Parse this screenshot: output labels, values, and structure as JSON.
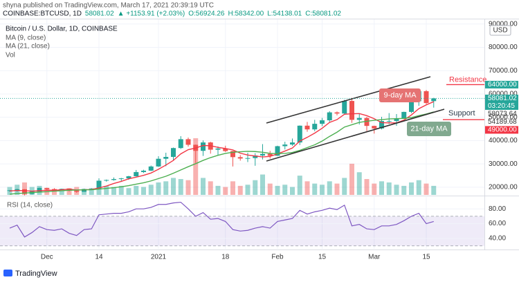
{
  "chart_data": {
    "type": "candlestick",
    "publisher": "shyna published on TradingView.com, March 17, 2021 20:39:19 UTC",
    "quote": [
      "COINBASE:BTCUSD, 1D",
      "58081.02",
      "▲ +1153.91 (+2.03%)",
      "O:56924.26",
      "H:58342.00",
      "L:54138.01",
      "C:58081.02"
    ],
    "title": "Bitcoin / U.S. Dollar, 1D, COINBASE",
    "currency": "USD",
    "categories": [
      null,
      null,
      null,
      null,
      null,
      "Dec",
      null,
      null,
      null,
      null,
      null,
      null,
      "14",
      null,
      null,
      null,
      null,
      null,
      null,
      null,
      "2021",
      null,
      null,
      null,
      null,
      null,
      null,
      null,
      null,
      "18",
      null,
      null,
      null,
      null,
      null,
      null,
      "Feb",
      null,
      null,
      null,
      null,
      null,
      "15",
      null,
      null,
      null,
      null,
      null,
      null,
      "Mar",
      null,
      null,
      null,
      null,
      null,
      null,
      "15",
      null
    ],
    "open": [
      18400,
      18700,
      19150,
      17150,
      18100,
      19700,
      19200,
      19150,
      19300,
      18550,
      18050,
      19250,
      19450,
      22800,
      23100,
      23500,
      23800,
      24700,
      26500,
      27100,
      28900,
      32200,
      33000,
      36800,
      40600,
      38200,
      35600,
      39200,
      36100,
      36600,
      35500,
      32900,
      32300,
      32500,
      33600,
      34300,
      33500,
      37600,
      38300,
      39200,
      46400,
      44800,
      47200,
      48700,
      52100,
      51600,
      57000,
      48900,
      49700,
      46300,
      45200,
      48400,
      48400,
      49500,
      52300,
      56900,
      61200,
      56924.26
    ],
    "high": [
      18800,
      19400,
      19200,
      18200,
      19800,
      19800,
      19600,
      19400,
      19400,
      18600,
      19400,
      19600,
      23800,
      23300,
      24200,
      24000,
      24900,
      27400,
      27500,
      29300,
      33300,
      34800,
      37000,
      41900,
      41300,
      38300,
      40100,
      39500,
      37500,
      37800,
      35600,
      33800,
      34800,
      34600,
      38500,
      35600,
      37800,
      39500,
      40900,
      46500,
      48000,
      48900,
      49700,
      52600,
      52500,
      57500,
      58300,
      51400,
      50200,
      46400,
      50200,
      51800,
      51400,
      52400,
      57400,
      61800,
      61700,
      58342
    ],
    "low": [
      18000,
      18000,
      16500,
      16900,
      18000,
      18700,
      18600,
      18900,
      18100,
      17600,
      18000,
      19100,
      19300,
      22400,
      22800,
      22300,
      23200,
      24600,
      26100,
      26900,
      28700,
      29000,
      31500,
      36400,
      37400,
      30400,
      33400,
      34400,
      33900,
      35100,
      28900,
      31400,
      30800,
      29200,
      31900,
      32300,
      33400,
      36200,
      37800,
      38100,
      43800,
      44000,
      46200,
      47700,
      50800,
      51300,
      47600,
      46900,
      44100,
      43000,
      44800,
      47100,
      46300,
      49300,
      51800,
      54900,
      55600,
      54138.01
    ],
    "close": [
      18700,
      19150,
      17150,
      18100,
      19700,
      19200,
      19150,
      19300,
      18550,
      18050,
      19250,
      19450,
      22800,
      23100,
      23500,
      23800,
      24700,
      26500,
      27100,
      28900,
      32200,
      33000,
      36800,
      40600,
      38200,
      35600,
      39200,
      36100,
      36600,
      35500,
      32900,
      32300,
      32500,
      33600,
      34300,
      33500,
      37600,
      38300,
      39200,
      46400,
      44800,
      47200,
      48700,
      52100,
      51600,
      57000,
      48900,
      49700,
      46300,
      45200,
      48400,
      48400,
      49500,
      52300,
      56900,
      61200,
      56100,
      58081.02
    ],
    "series": [
      {
        "name": "MA (9, close)",
        "color": "#f23645",
        "values": [
          18400,
          18600,
          18500,
          18300,
          18500,
          18700,
          18700,
          18900,
          19200,
          18800,
          18900,
          19000,
          19700,
          20500,
          21600,
          22500,
          23600,
          24300,
          25100,
          26100,
          27700,
          29500,
          31500,
          34300,
          36100,
          36800,
          37900,
          37800,
          37100,
          36600,
          36000,
          34600,
          33800,
          33400,
          33000,
          33200,
          34300,
          35500,
          36800,
          39800,
          41400,
          43200,
          45300,
          47800,
          49000,
          51300,
          51500,
          51600,
          50700,
          49400,
          47700,
          47600,
          47600,
          48800,
          51000,
          53700,
          55300,
          56700
        ]
      },
      {
        "name": "MA (21, close)",
        "color": "#4caf50",
        "values": [
          17000,
          17300,
          17500,
          17700,
          17900,
          18100,
          18300,
          18500,
          18700,
          18800,
          18900,
          18900,
          19200,
          19500,
          19800,
          20200,
          20700,
          21300,
          21900,
          22700,
          23700,
          24700,
          26000,
          27400,
          28800,
          30100,
          31500,
          32700,
          33700,
          34500,
          35000,
          35200,
          35400,
          35300,
          35000,
          34500,
          34400,
          34500,
          34900,
          35800,
          37000,
          38200,
          39800,
          41800,
          43600,
          45800,
          46800,
          47800,
          48300,
          48700,
          49000,
          49300,
          49400,
          49500,
          49900,
          50700,
          51400,
          52300
        ]
      }
    ],
    "volume": {
      "name": "Vol",
      "max": 100,
      "values": [
        14,
        18,
        22,
        14,
        16,
        12,
        10,
        8,
        12,
        14,
        10,
        10,
        22,
        16,
        14,
        16,
        12,
        16,
        14,
        18,
        22,
        24,
        30,
        28,
        26,
        100,
        30,
        24,
        16,
        14,
        24,
        16,
        18,
        26,
        36,
        20,
        16,
        18,
        14,
        34,
        24,
        20,
        18,
        24,
        20,
        30,
        55,
        40,
        28,
        20,
        24,
        22,
        18,
        16,
        22,
        26,
        20,
        16
      ]
    },
    "ylim": [
      16700,
      92000
    ],
    "yticks": [
      {
        "value": 20000,
        "label": "20000.00"
      },
      {
        "value": 30000,
        "label": "30000.00"
      },
      {
        "value": 40000,
        "label": "40000.00"
      },
      {
        "value": 50000,
        "label": "50000.00"
      },
      {
        "value": 60000,
        "label": "60000.00"
      },
      {
        "value": 70000,
        "label": "70000.00"
      },
      {
        "value": 80000,
        "label": "80000.00"
      },
      {
        "value": 90000,
        "label": "90000.00"
      }
    ],
    "price_labels": [
      {
        "value": 64000,
        "label": "64000.00",
        "color": "#26a69a"
      },
      {
        "value": 58081.02,
        "label": "58081.02",
        "sublabel": "03:20:45",
        "color": "#26a69a"
      },
      {
        "value": 58073.64,
        "label": "58073.64",
        "color": null
      },
      {
        "value": 54189.68,
        "label": "54189.68",
        "color": null
      },
      {
        "value": 49000,
        "label": "49000.00",
        "color": "#f23645"
      }
    ],
    "levels": [
      {
        "name": "Resistance",
        "value": 64000,
        "color": "#f23645"
      },
      {
        "name": "Support",
        "value": 49000,
        "color": "#f23645"
      }
    ],
    "annotations": [
      {
        "text": "9-day MA",
        "color": "#e57373"
      },
      {
        "text": "21-day MA",
        "color": "#81a98f"
      }
    ],
    "rsi": {
      "name": "RSI (14, close)",
      "color": "#7e57c2",
      "values": [
        54,
        58,
        42,
        48,
        56,
        52,
        51,
        53,
        47,
        44,
        52,
        53,
        72,
        73,
        74,
        74,
        76,
        80,
        80,
        82,
        86,
        86,
        88,
        89,
        80,
        70,
        75,
        66,
        67,
        63,
        52,
        50,
        51,
        54,
        56,
        54,
        63,
        65,
        67,
        78,
        73,
        76,
        78,
        81,
        79,
        85,
        57,
        59,
        53,
        52,
        57,
        57,
        59,
        64,
        70,
        74,
        60,
        63
      ],
      "ylim": [
        26,
        97
      ],
      "yticks": [
        {
          "value": 40,
          "label": "40.00"
        },
        {
          "value": 60,
          "label": "60.00"
        },
        {
          "value": 80,
          "label": "80.00"
        }
      ],
      "band": [
        30,
        70
      ]
    },
    "grid": true,
    "footer": "TradingView"
  }
}
